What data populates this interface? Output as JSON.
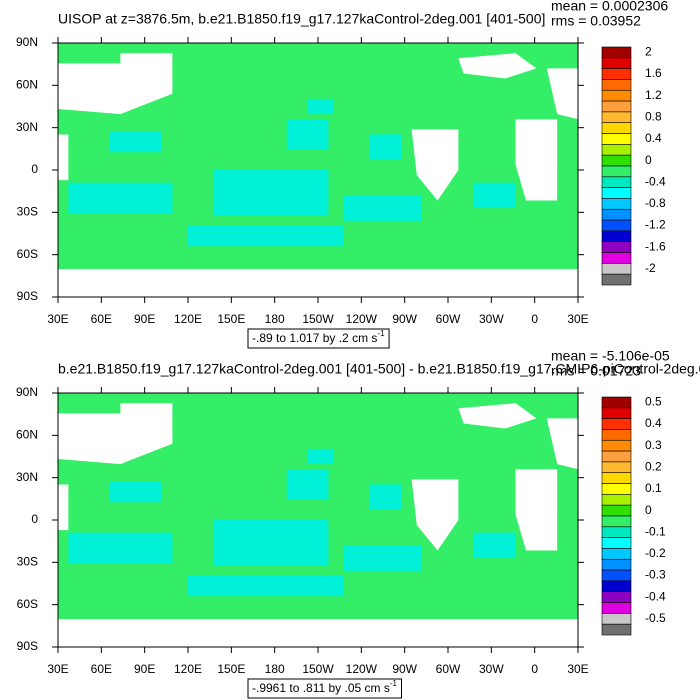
{
  "panels": [
    {
      "title": "UISOP at z=3876.5m, b.e21.B1850.f19_g17.127kaControl-2deg.001 [401-500]",
      "mean": "mean = 0.0002306",
      "rms": "rms = 0.03952",
      "lat_labels": [
        "90N",
        "60N",
        "30N",
        "0",
        "30S",
        "60S",
        "90S"
      ],
      "lon_labels": [
        "30E",
        "60E",
        "90E",
        "120E",
        "150E",
        "180",
        "150W",
        "120W",
        "90W",
        "60W",
        "30W",
        "0",
        "30E"
      ],
      "colorbar": {
        "colors": [
          "#a00000",
          "#e00000",
          "#ff3000",
          "#ff6a00",
          "#ff8c00",
          "#ffa040",
          "#ffb830",
          "#ffd800",
          "#ffff00",
          "#a8f000",
          "#30e000",
          "#33ee66",
          "#00e8c0",
          "#00ffff",
          "#00c8ff",
          "#0090ff",
          "#0050ff",
          "#0000d0",
          "#9000c0",
          "#e000e0",
          "#c8c8c8",
          "#707070"
        ],
        "labels": [
          2,
          1.6,
          1.2,
          0.8,
          0.4,
          0,
          -0.4,
          -0.8,
          -1.2,
          -1.6,
          -2
        ]
      },
      "caption": "-.89 to 1.017 by .2 cm s",
      "caption_sup": "-1"
    },
    {
      "title": "b.e21.B1850.f19_g17.127kaControl-2deg.001 [401-500] - b.e21.B1850.f19_g17.CMIP6-piControl-2deg.0",
      "mean": "mean = -5.106e-05",
      "rms": "rms = 0.01723",
      "lat_labels": [
        "90N",
        "60N",
        "30N",
        "0",
        "30S",
        "60S",
        "90S"
      ],
      "lon_labels": [
        "30E",
        "60E",
        "90E",
        "120E",
        "150E",
        "180",
        "150W",
        "120W",
        "90W",
        "60W",
        "30W",
        "0",
        "30E"
      ],
      "colorbar": {
        "colors": [
          "#a00000",
          "#e00000",
          "#ff3000",
          "#ff6a00",
          "#ff8c00",
          "#ffa040",
          "#ffb830",
          "#ffd800",
          "#ffff00",
          "#a8f000",
          "#30e000",
          "#33ee66",
          "#00e8c0",
          "#00ffff",
          "#00c8ff",
          "#0090ff",
          "#0050ff",
          "#0000d0",
          "#9000c0",
          "#e000e0",
          "#c8c8c8",
          "#707070"
        ],
        "labels": [
          0.5,
          0.4,
          0.3,
          0.2,
          0.1,
          0,
          -0.1,
          -0.2,
          -0.3,
          -0.4,
          -0.5
        ]
      },
      "caption": "-.9961 to .811 by .05 cm s",
      "caption_sup": "-1"
    }
  ]
}
